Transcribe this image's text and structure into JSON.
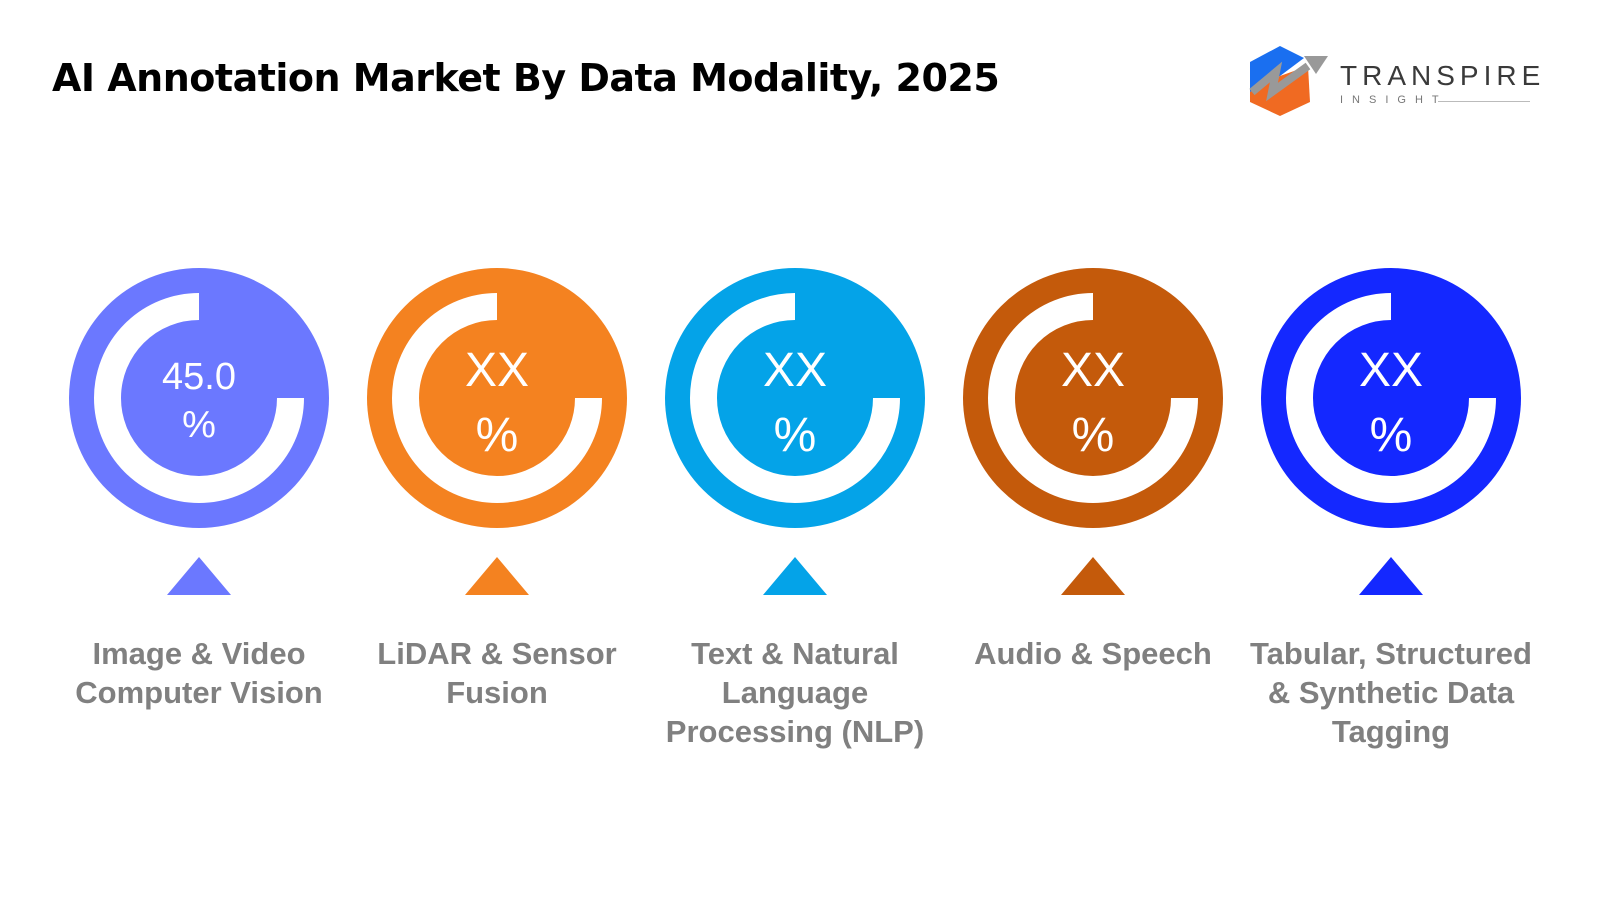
{
  "title": "AI Annotation Market By Data Modality, 2025",
  "logo": {
    "name": "TRANSPIRE",
    "sub": "INSIGHT"
  },
  "chart_data": {
    "type": "donut-infographic",
    "categories": [
      "Image & Video Computer Vision",
      "LiDAR & Sensor Fusion",
      "Text & Natural Language Processing (NLP)",
      "Audio & Speech",
      "Tabular, Structured & Synthetic Data Tagging"
    ],
    "value_labels": [
      "45.0 %",
      "XX %",
      "XX %",
      "XX %",
      "XX %"
    ],
    "values": [
      45.0,
      null,
      null,
      null,
      null
    ],
    "colors": [
      "#6B78FF",
      "#F48220",
      "#04A3E8",
      "#C45A0B",
      "#1428FF"
    ]
  },
  "segments": [
    {
      "label_lines": [
        "Image & Video",
        "Computer Vision"
      ],
      "value": "45.0",
      "unit": "%"
    },
    {
      "label_lines": [
        "LiDAR & Sensor",
        "Fusion"
      ],
      "value": "XX",
      "unit": "%"
    },
    {
      "label_lines": [
        "Text & Natural",
        "Language",
        "Processing (NLP)"
      ],
      "value": "XX",
      "unit": "%"
    },
    {
      "label_lines": [
        "Audio & Speech"
      ],
      "value": "XX",
      "unit": "%"
    },
    {
      "label_lines": [
        "Tabular, Structured",
        "& Synthetic Data",
        "Tagging"
      ],
      "value": "XX",
      "unit": "%"
    }
  ]
}
